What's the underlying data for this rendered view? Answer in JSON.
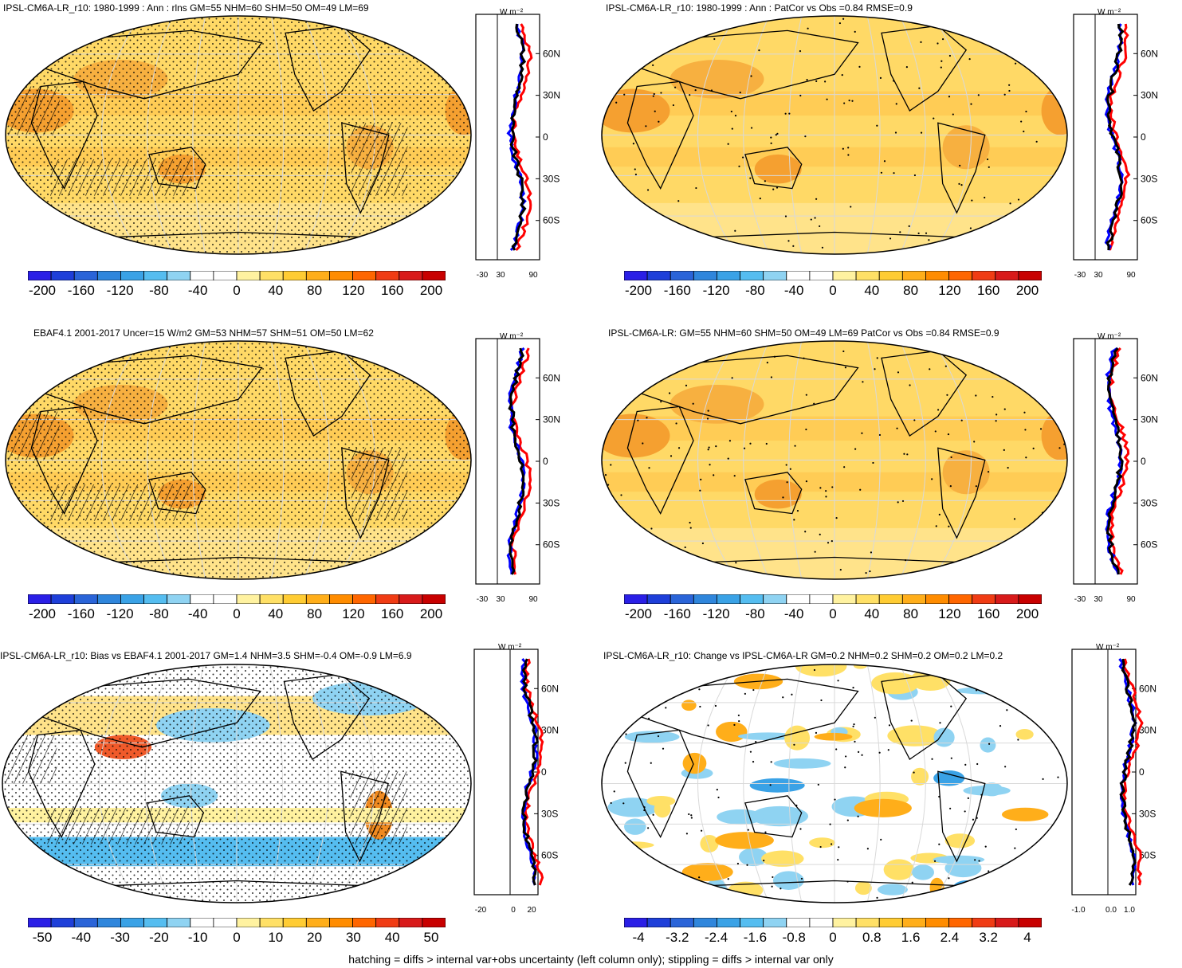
{
  "footer": "hatching = diffs > internal var+obs uncertainty (left column only); stippling = diffs > internal var only",
  "profile_unit": "W m⁻²",
  "lat_labels": [
    "60N",
    "30N",
    "0",
    "30S",
    "60S"
  ],
  "panels": [
    {
      "title": "IPSL-CM6A-LR_r10: 1980-1999 : Ann : rlns GM=55 NHM=60 SHM=50 OM=49 LM=69",
      "profile_ticks": [
        "-30",
        "30",
        "90"
      ],
      "colorbar": [
        "-200",
        "-160",
        "-120",
        "-80",
        "-40",
        "0",
        "40",
        "80",
        "120",
        "160",
        "200"
      ],
      "palette": "abs"
    },
    {
      "title": "IPSL-CM6A-LR_r10: 1980-1999 : Ann : PatCor vs Obs =0.84 RMSE=0.9",
      "profile_ticks": [
        "-30",
        "30",
        "90"
      ],
      "colorbar": [
        "-200",
        "-160",
        "-120",
        "-80",
        "-40",
        "0",
        "40",
        "80",
        "120",
        "160",
        "200"
      ],
      "palette": "abs"
    },
    {
      "title": "EBAF4.1 2001-2017 Uncer=15 W/m2 GM=53 NHM=57 SHM=51 OM=50 LM=62",
      "profile_ticks": [
        "-30",
        "30",
        "90"
      ],
      "colorbar": [
        "-200",
        "-160",
        "-120",
        "-80",
        "-40",
        "0",
        "40",
        "80",
        "120",
        "160",
        "200"
      ],
      "palette": "abs"
    },
    {
      "title": "IPSL-CM6A-LR: GM=55 NHM=60 SHM=50 OM=49 LM=69 PatCor vs Obs =0.84 RMSE=0.9",
      "profile_ticks": [
        "-30",
        "30",
        "90"
      ],
      "colorbar": [
        "-200",
        "-160",
        "-120",
        "-80",
        "-40",
        "0",
        "40",
        "80",
        "120",
        "160",
        "200"
      ],
      "palette": "abs"
    },
    {
      "title": "IPSL-CM6A-LR_r10: Bias vs EBAF4.1 2001-2017 GM=1.4 NHM=3.5 SHM=-0.4 OM=-0.9 LM=6.9",
      "profile_ticks": [
        "-20",
        "0",
        "20"
      ],
      "colorbar": [
        "-50",
        "-40",
        "-30",
        "-20",
        "-10",
        "0",
        "10",
        "20",
        "30",
        "40",
        "50"
      ],
      "palette": "diff"
    },
    {
      "title": "IPSL-CM6A-LR_r10: Change vs IPSL-CM6A-LR GM=0.2 NHM=0.2 SHM=0.2 OM=0.2 LM=0.2",
      "profile_ticks": [
        "-1.0",
        "0.0",
        "1.0"
      ],
      "colorbar": [
        "-4",
        "-3.2",
        "-2.4",
        "-1.6",
        "-0.8",
        "0",
        "0.8",
        "1.6",
        "2.4",
        "3.2",
        "4"
      ],
      "palette": "diff"
    }
  ],
  "colors": {
    "scale": [
      "#2a1fe6",
      "#1e3fd9",
      "#2a64d8",
      "#2f86dc",
      "#3aa2e6",
      "#55bdf0",
      "#8fd3f2",
      "#ffffff",
      "#ffffff",
      "#fff2a0",
      "#ffe066",
      "#ffcc33",
      "#ffae1a",
      "#ff8c00",
      "#ff6600",
      "#f03c14",
      "#d81a1a",
      "#c80000"
    ],
    "model_line": "#000000",
    "obs_line": "#0000ff",
    "diff_line": "#ff0000"
  }
}
